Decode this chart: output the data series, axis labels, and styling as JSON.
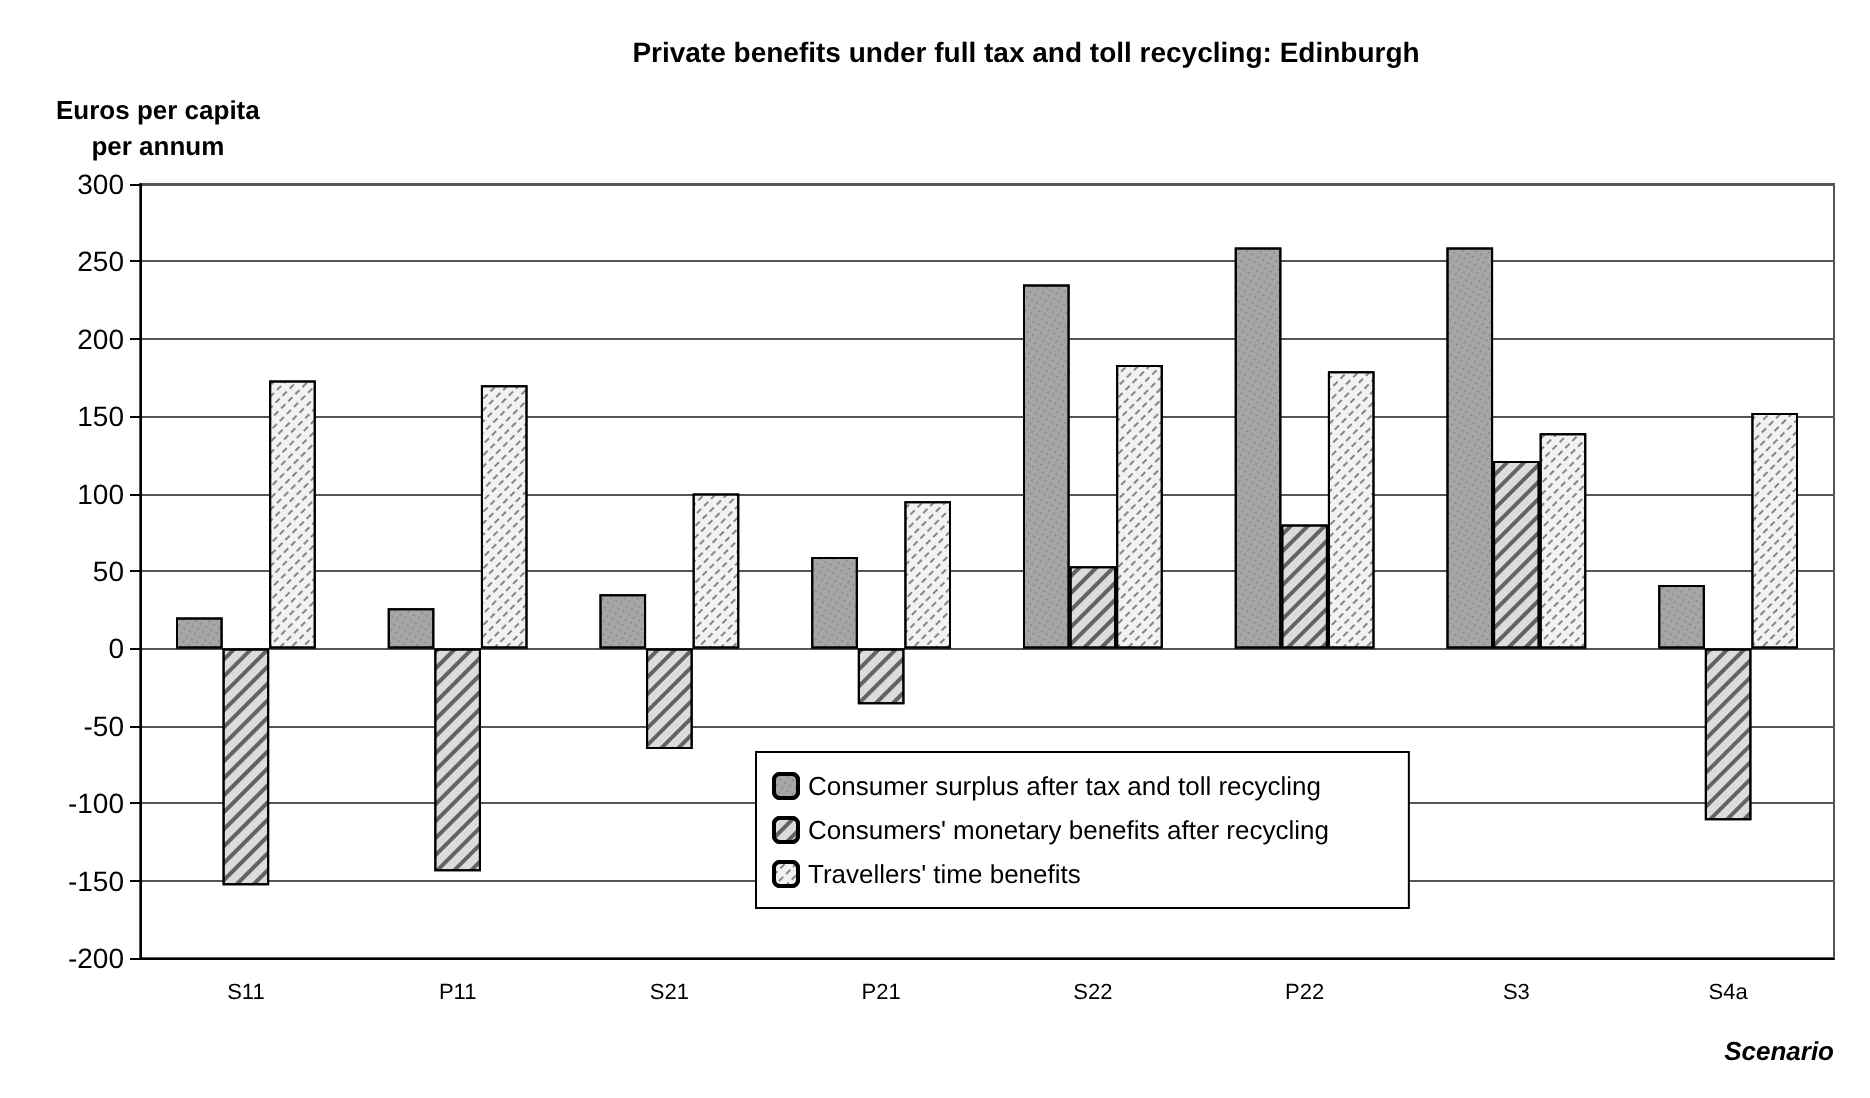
{
  "chart_data": {
    "type": "bar",
    "title": "Private benefits under full tax and toll recycling: Edinburgh",
    "xlabel": "Scenario",
    "ylabel": "Euros per capita per annum",
    "categories": [
      "S11",
      "P11",
      "S21",
      "P21",
      "S22",
      "P22",
      "S3",
      "S4a"
    ],
    "series": [
      {
        "name": "Consumer surplus after tax and toll recycling",
        "color": "#a6a6a6",
        "values": [
          20,
          26,
          35,
          59,
          235,
          259,
          259,
          41
        ]
      },
      {
        "name": "Consumers' monetary benefits after recycling",
        "color": "#dcdcdc",
        "values": [
          -153,
          -144,
          -65,
          -36,
          53,
          80,
          121,
          -111
        ]
      },
      {
        "name": "Travellers' time benefits",
        "color": "#f2f2f2",
        "values": [
          173,
          170,
          100,
          95,
          183,
          179,
          139,
          152
        ]
      }
    ],
    "ylim": [
      -200,
      300
    ],
    "yticks": [
      -200,
      -150,
      -100,
      -50,
      0,
      50,
      100,
      150,
      200,
      250,
      300
    ],
    "grid": "y",
    "legend": "bottom"
  }
}
